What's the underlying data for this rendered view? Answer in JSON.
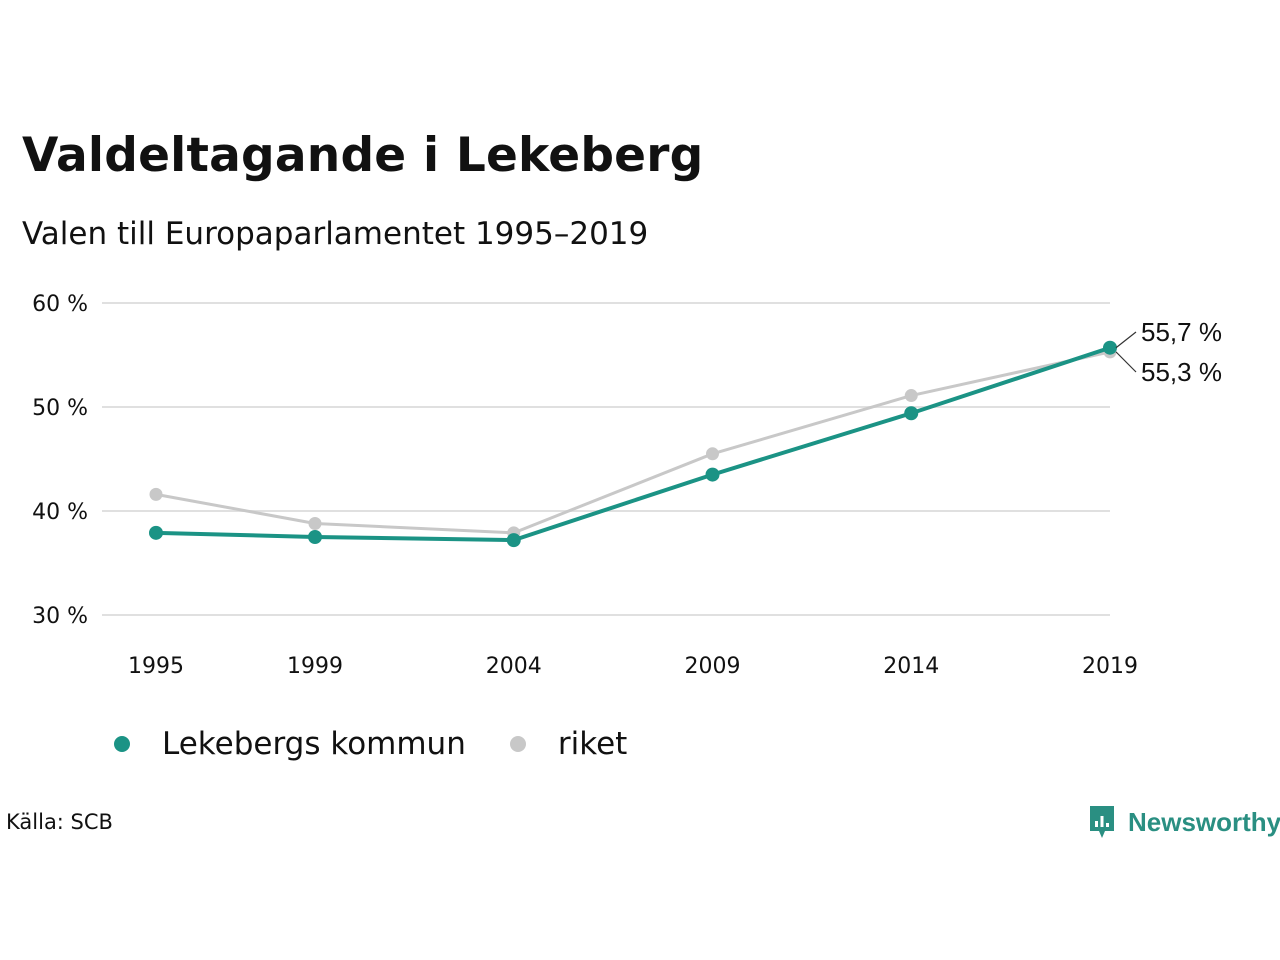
{
  "title": "Valdeltagande i Lekeberg",
  "subtitle": "Valen till Europaparlamentet 1995–2019",
  "source": "Källa: SCB",
  "brand": {
    "name": "Newsworthy",
    "icon": "newsworthy-logo-icon",
    "color": "#2a8f82"
  },
  "legend": [
    {
      "label": "Lekebergs kommun",
      "color": "#1b9385"
    },
    {
      "label": "riket",
      "color": "#c8c8c8"
    }
  ],
  "chart_data": {
    "type": "line",
    "title": "Valdeltagande i Lekeberg",
    "subtitle": "Valen till Europaparlamentet 1995–2019",
    "categories": [
      "1995",
      "1999",
      "2004",
      "2009",
      "2014",
      "2019"
    ],
    "x_positions": [
      1995,
      1999,
      2004,
      2009,
      2014,
      2019
    ],
    "series": [
      {
        "name": "riket",
        "color": "#c8c8c8",
        "values": [
          41.6,
          38.8,
          37.9,
          45.5,
          51.1,
          55.3
        ]
      },
      {
        "name": "Lekebergs kommun",
        "color": "#1b9385",
        "values": [
          37.9,
          37.5,
          37.2,
          43.5,
          49.4,
          55.7
        ]
      }
    ],
    "y_ticks": [
      30,
      40,
      50,
      60
    ],
    "y_tick_labels": [
      "30 %",
      "40 %",
      "50 %",
      "60 %"
    ],
    "ylim": [
      30,
      60
    ],
    "xlim": [
      1995,
      2019
    ],
    "end_labels": [
      "55,7 %",
      "55,3 %"
    ],
    "grid": "horizontal",
    "legend_position": "bottom"
  }
}
